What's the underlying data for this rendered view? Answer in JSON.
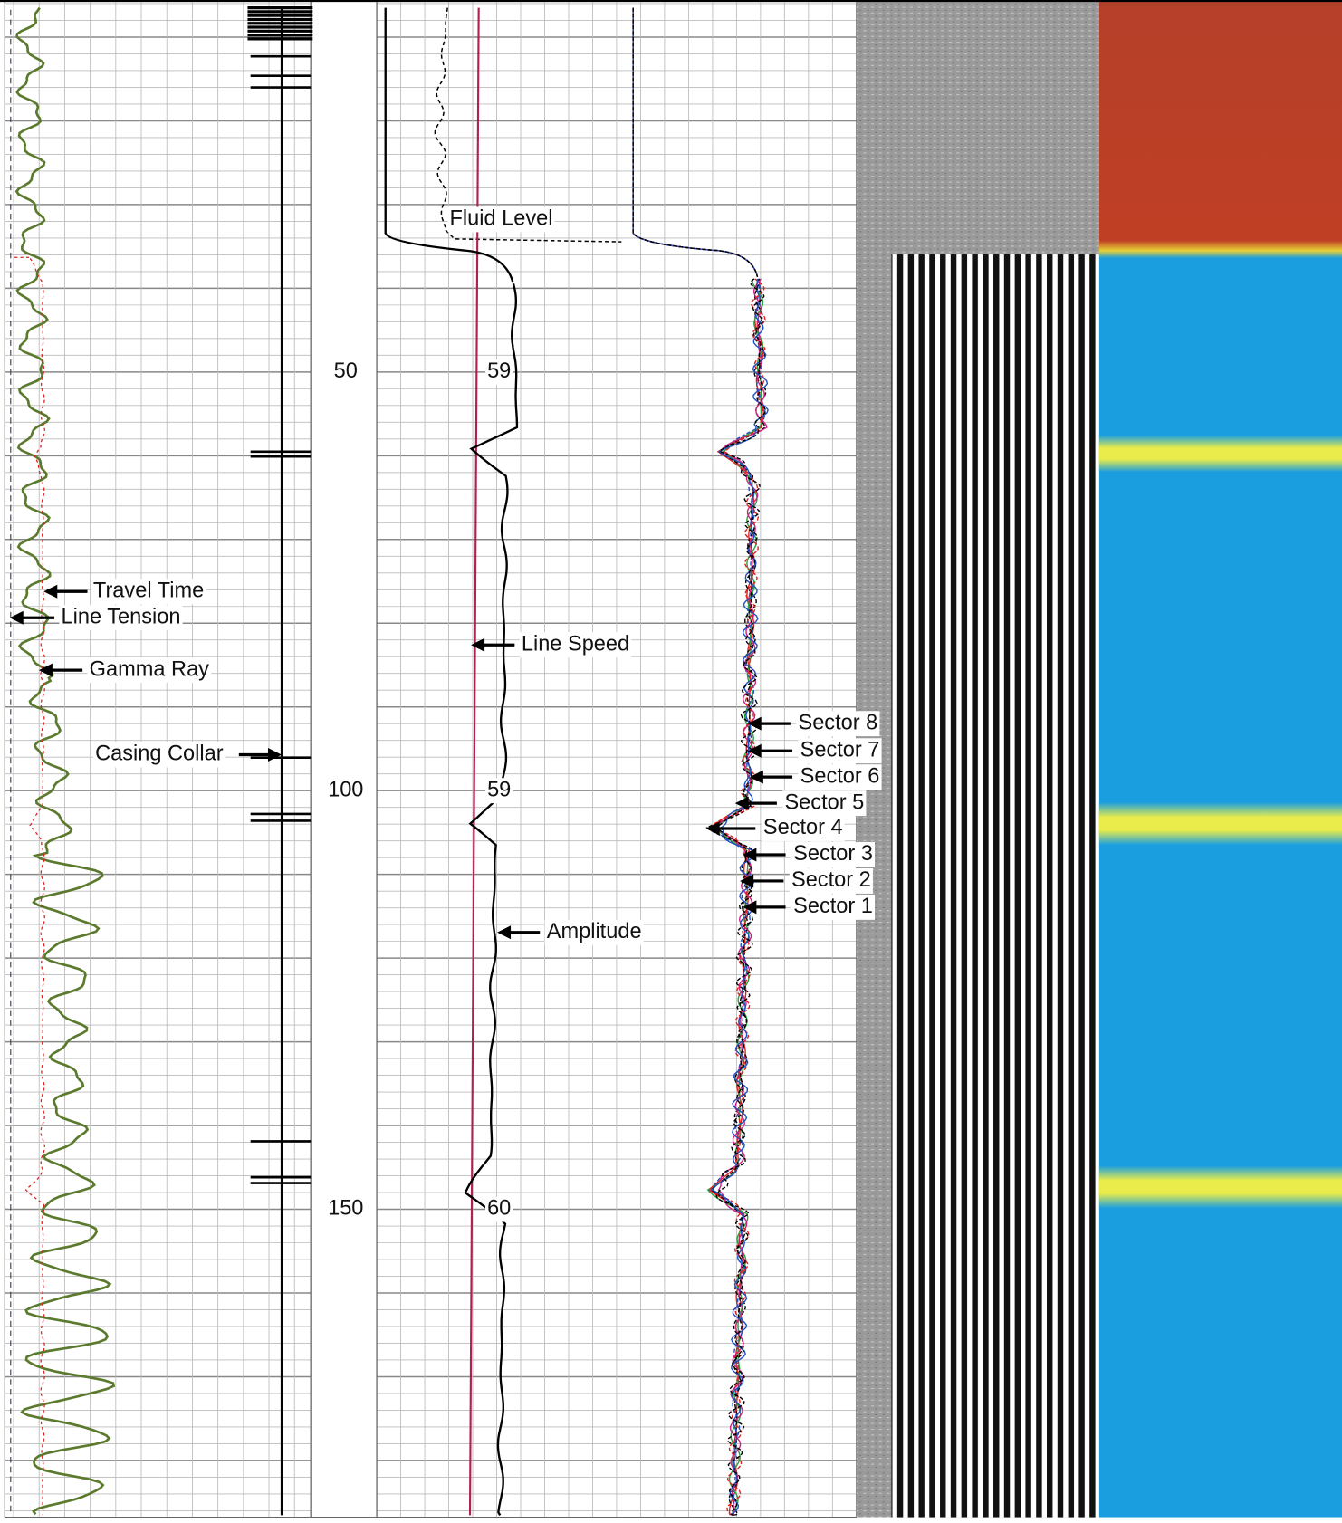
{
  "depth_track": {
    "labels": [
      50,
      100,
      150
    ]
  },
  "amplitude_readings": [
    {
      "depth": 50,
      "label": "59"
    },
    {
      "depth": 100,
      "label": "59"
    },
    {
      "depth": 150,
      "label": "60"
    }
  ],
  "annotations": {
    "travel_time": "Travel Time",
    "line_tension": "Line Tension",
    "gamma_ray": "Gamma Ray",
    "casing_collar": "Casing Collar",
    "fluid_level": "Fluid Level",
    "line_speed": "Line Speed",
    "amplitude": "Amplitude",
    "sectors": [
      "Sector 8",
      "Sector 7",
      "Sector 6",
      "Sector 5",
      "Sector 4",
      "Sector 3",
      "Sector 2",
      "Sector 1"
    ]
  }
}
